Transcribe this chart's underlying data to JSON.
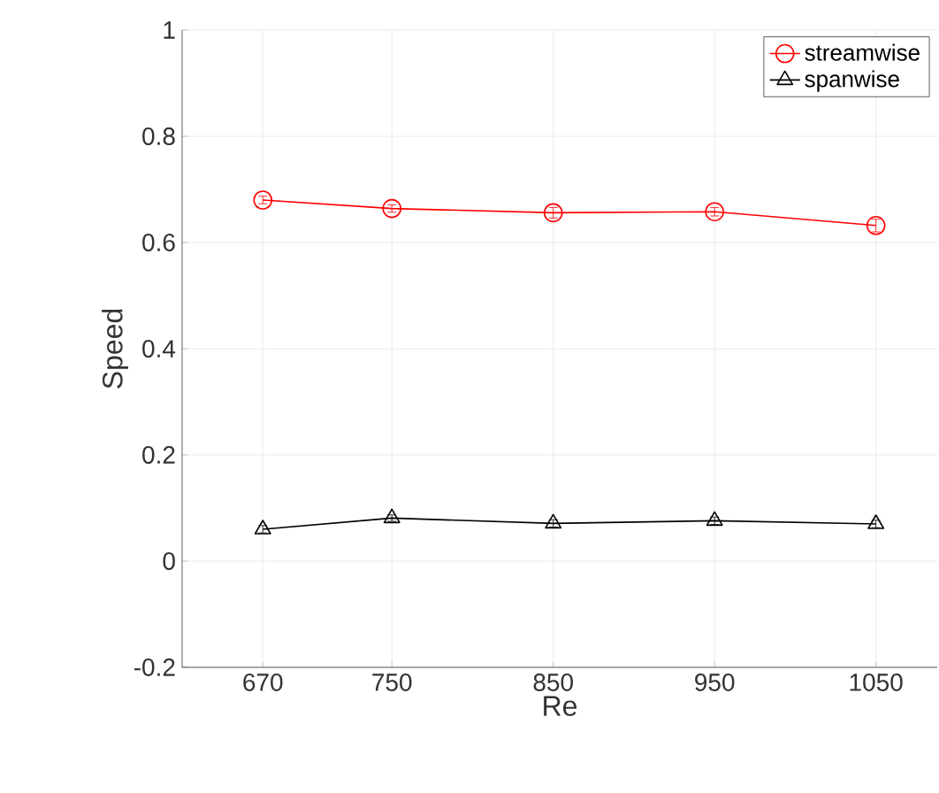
{
  "chart_data": {
    "type": "line",
    "xlabel": "Re",
    "ylabel": "Speed",
    "x": [
      670,
      750,
      850,
      950,
      1050
    ],
    "xlim": [
      620,
      1088
    ],
    "xticks": [
      670,
      750,
      850,
      950,
      1050
    ],
    "ylim": [
      -0.2,
      1
    ],
    "yticks": [
      -0.2,
      0,
      0.2,
      0.4,
      0.6,
      0.8,
      1
    ],
    "grid": true,
    "legend": "top right",
    "series": [
      {
        "name": "streamwise",
        "color": "#ff0000",
        "marker": "circle",
        "values": [
          0.68,
          0.664,
          0.656,
          0.658,
          0.632
        ],
        "errors": [
          0.007,
          0.007,
          0.01,
          0.008,
          0.012
        ]
      },
      {
        "name": "spanwise",
        "color": "#000000",
        "marker": "triangle",
        "values": [
          0.06,
          0.081,
          0.071,
          0.076,
          0.07
        ],
        "errors": [
          0.007,
          0.006,
          0.007,
          0.007,
          0.007
        ]
      }
    ]
  }
}
